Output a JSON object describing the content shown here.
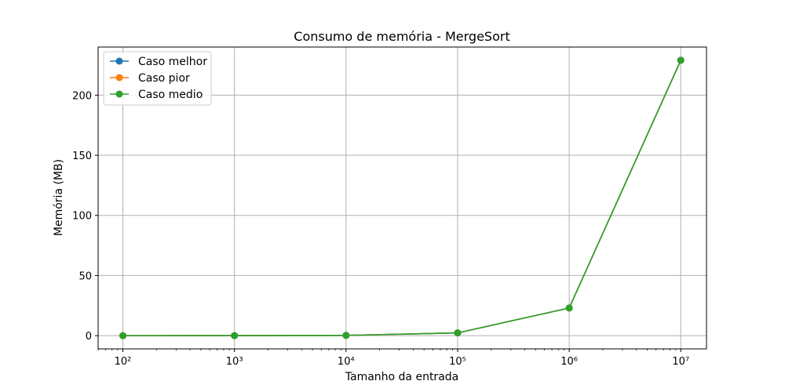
{
  "chart_data": {
    "type": "line",
    "title": "Consumo de memória - MergeSort",
    "xlabel": "Tamanho da entrada",
    "ylabel": "Memória (MB)",
    "xscale": "log",
    "xlim": [
      60,
      17000000
    ],
    "ylim": [
      -11,
      240
    ],
    "x": [
      100,
      1000,
      10000,
      100000,
      1000000,
      10000000
    ],
    "x_tick_labels": [
      "10²",
      "10³",
      "10⁴",
      "10⁵",
      "10⁶",
      "10⁷"
    ],
    "y_ticks": [
      0,
      50,
      100,
      150,
      200
    ],
    "y_tick_labels": [
      "0",
      "50",
      "100",
      "150",
      "200"
    ],
    "grid": true,
    "legend_position": "top-left",
    "series": [
      {
        "name": "Caso melhor",
        "color": "#1f77b4",
        "values": [
          0.0,
          0.02,
          0.23,
          2.29,
          23.0,
          229.0
        ]
      },
      {
        "name": "Caso pior",
        "color": "#ff7f0e",
        "values": [
          0.0,
          0.02,
          0.23,
          2.29,
          23.0,
          229.0
        ]
      },
      {
        "name": "Caso medio",
        "color": "#2ca02c",
        "values": [
          0.0,
          0.02,
          0.23,
          2.29,
          23.0,
          229.0
        ]
      }
    ]
  }
}
